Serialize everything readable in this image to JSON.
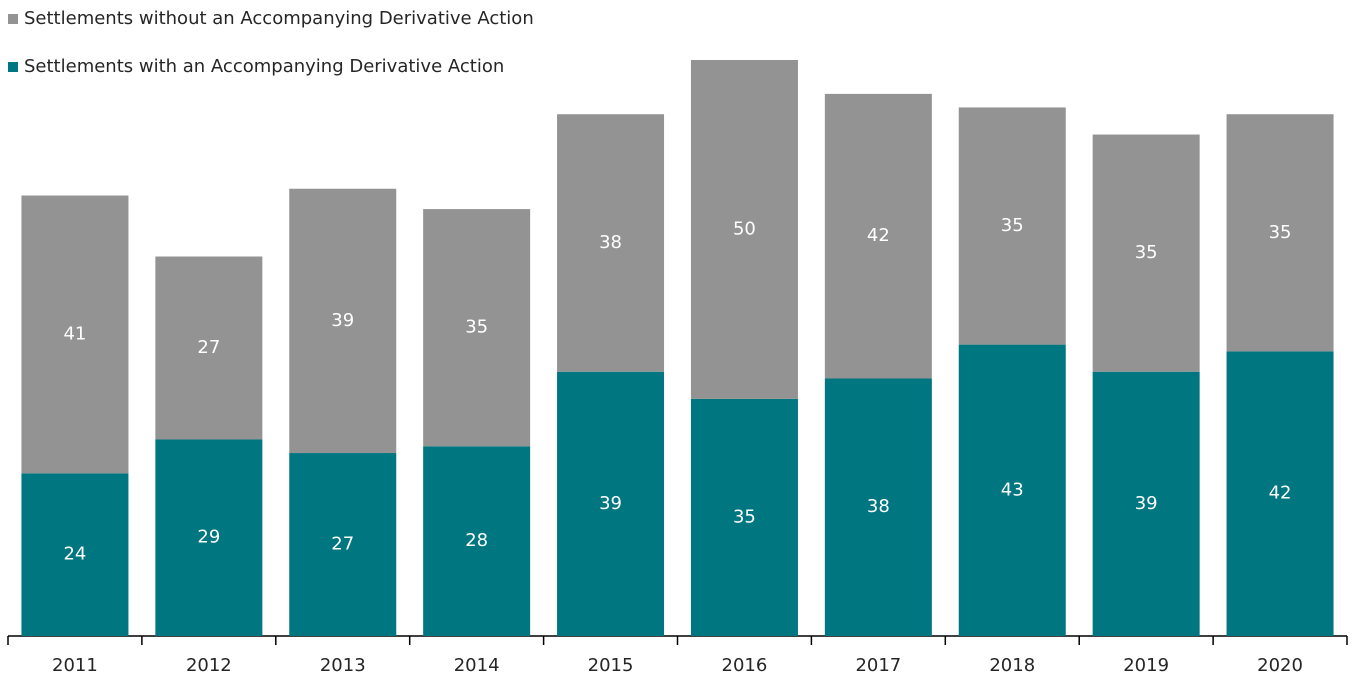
{
  "chart_data": {
    "type": "stacked_bar",
    "categories": [
      "2011",
      "2012",
      "2013",
      "2014",
      "2015",
      "2016",
      "2017",
      "2018",
      "2019",
      "2020"
    ],
    "series": [
      {
        "name": "Settlements with an Accompanying Derivative Action",
        "color": "#007680",
        "values": [
          24,
          29,
          27,
          28,
          39,
          35,
          38,
          43,
          39,
          42
        ]
      },
      {
        "name": "Settlements without an Accompanying Derivative Action",
        "color": "#939393",
        "values": [
          41,
          27,
          39,
          35,
          38,
          50,
          42,
          35,
          35,
          35
        ]
      }
    ],
    "legend": "top-left"
  }
}
